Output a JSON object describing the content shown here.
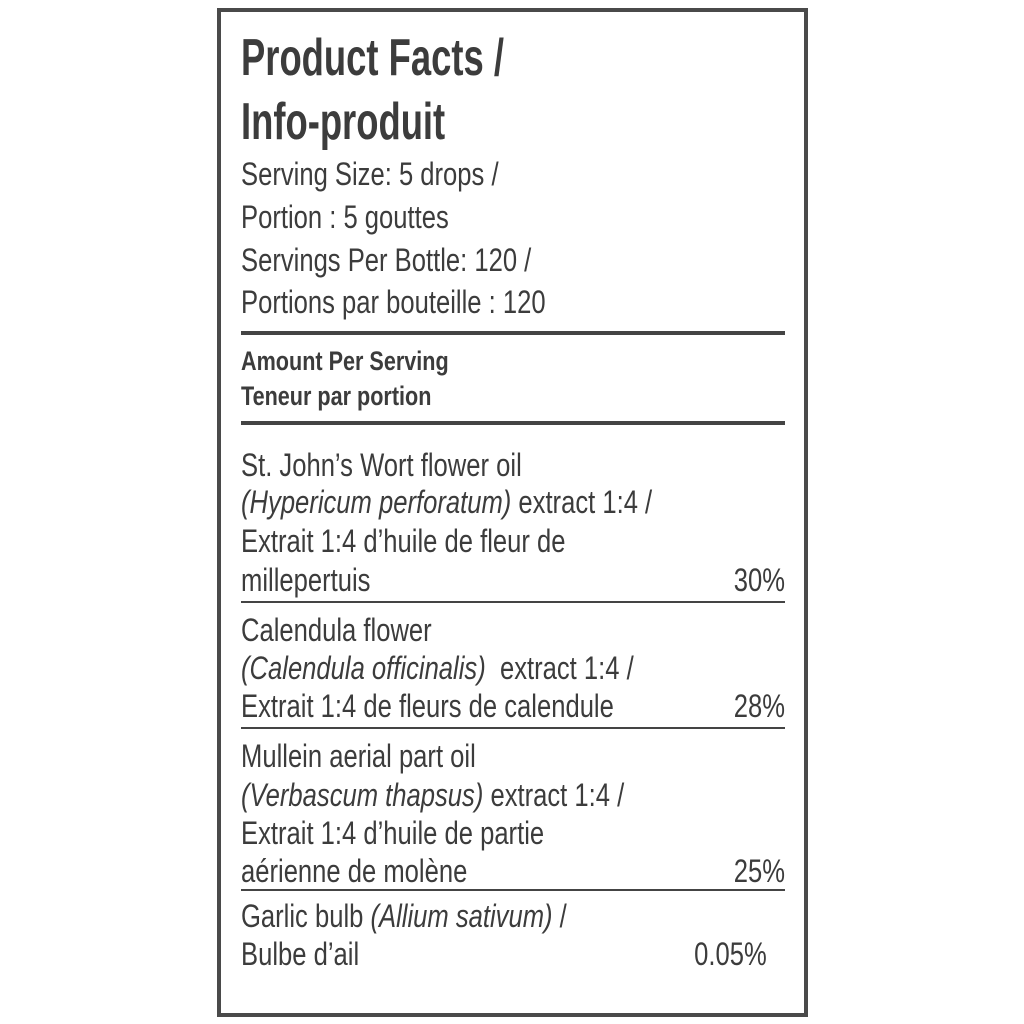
{
  "title": [
    "Product Facts /",
    "Info-produit"
  ],
  "serving": [
    "Serving Size: 5 drops /",
    "Portion : 5 gouttes",
    "Servings Per Bottle: 120 /",
    "Portions par bouteille : 120"
  ],
  "amount_header": [
    "Amount Per Serving",
    "Teneur par portion"
  ],
  "ingredients": [
    {
      "name": "St. John’s Wort flower oil",
      "latin": "(Hypericum perforatum)",
      "after_latin": " extract 1:4 /",
      "fr1": "Extrait 1:4 d’huile de fleur de",
      "fr2": "millepertuis",
      "percent": "30%"
    },
    {
      "name": "Calendula flower",
      "latin": "(Calendula officinalis)",
      "after_latin": "  extract 1:4 /",
      "fr1": "Extrait 1:4 de fleurs de calendule",
      "percent": "28%"
    },
    {
      "name": "Mullein aerial part oil",
      "latin": "(Verbascum thapsus)",
      "after_latin": " extract 1:4 /",
      "fr1": "Extrait 1:4 d’huile de partie",
      "fr2": "aérienne de molène",
      "percent": "25%"
    },
    {
      "name": "Garlic bulb ",
      "latin": "(Allium sativum)",
      "after_latin": " /",
      "fr1": "Bulbe d’ail",
      "percent": "0.05%"
    }
  ]
}
